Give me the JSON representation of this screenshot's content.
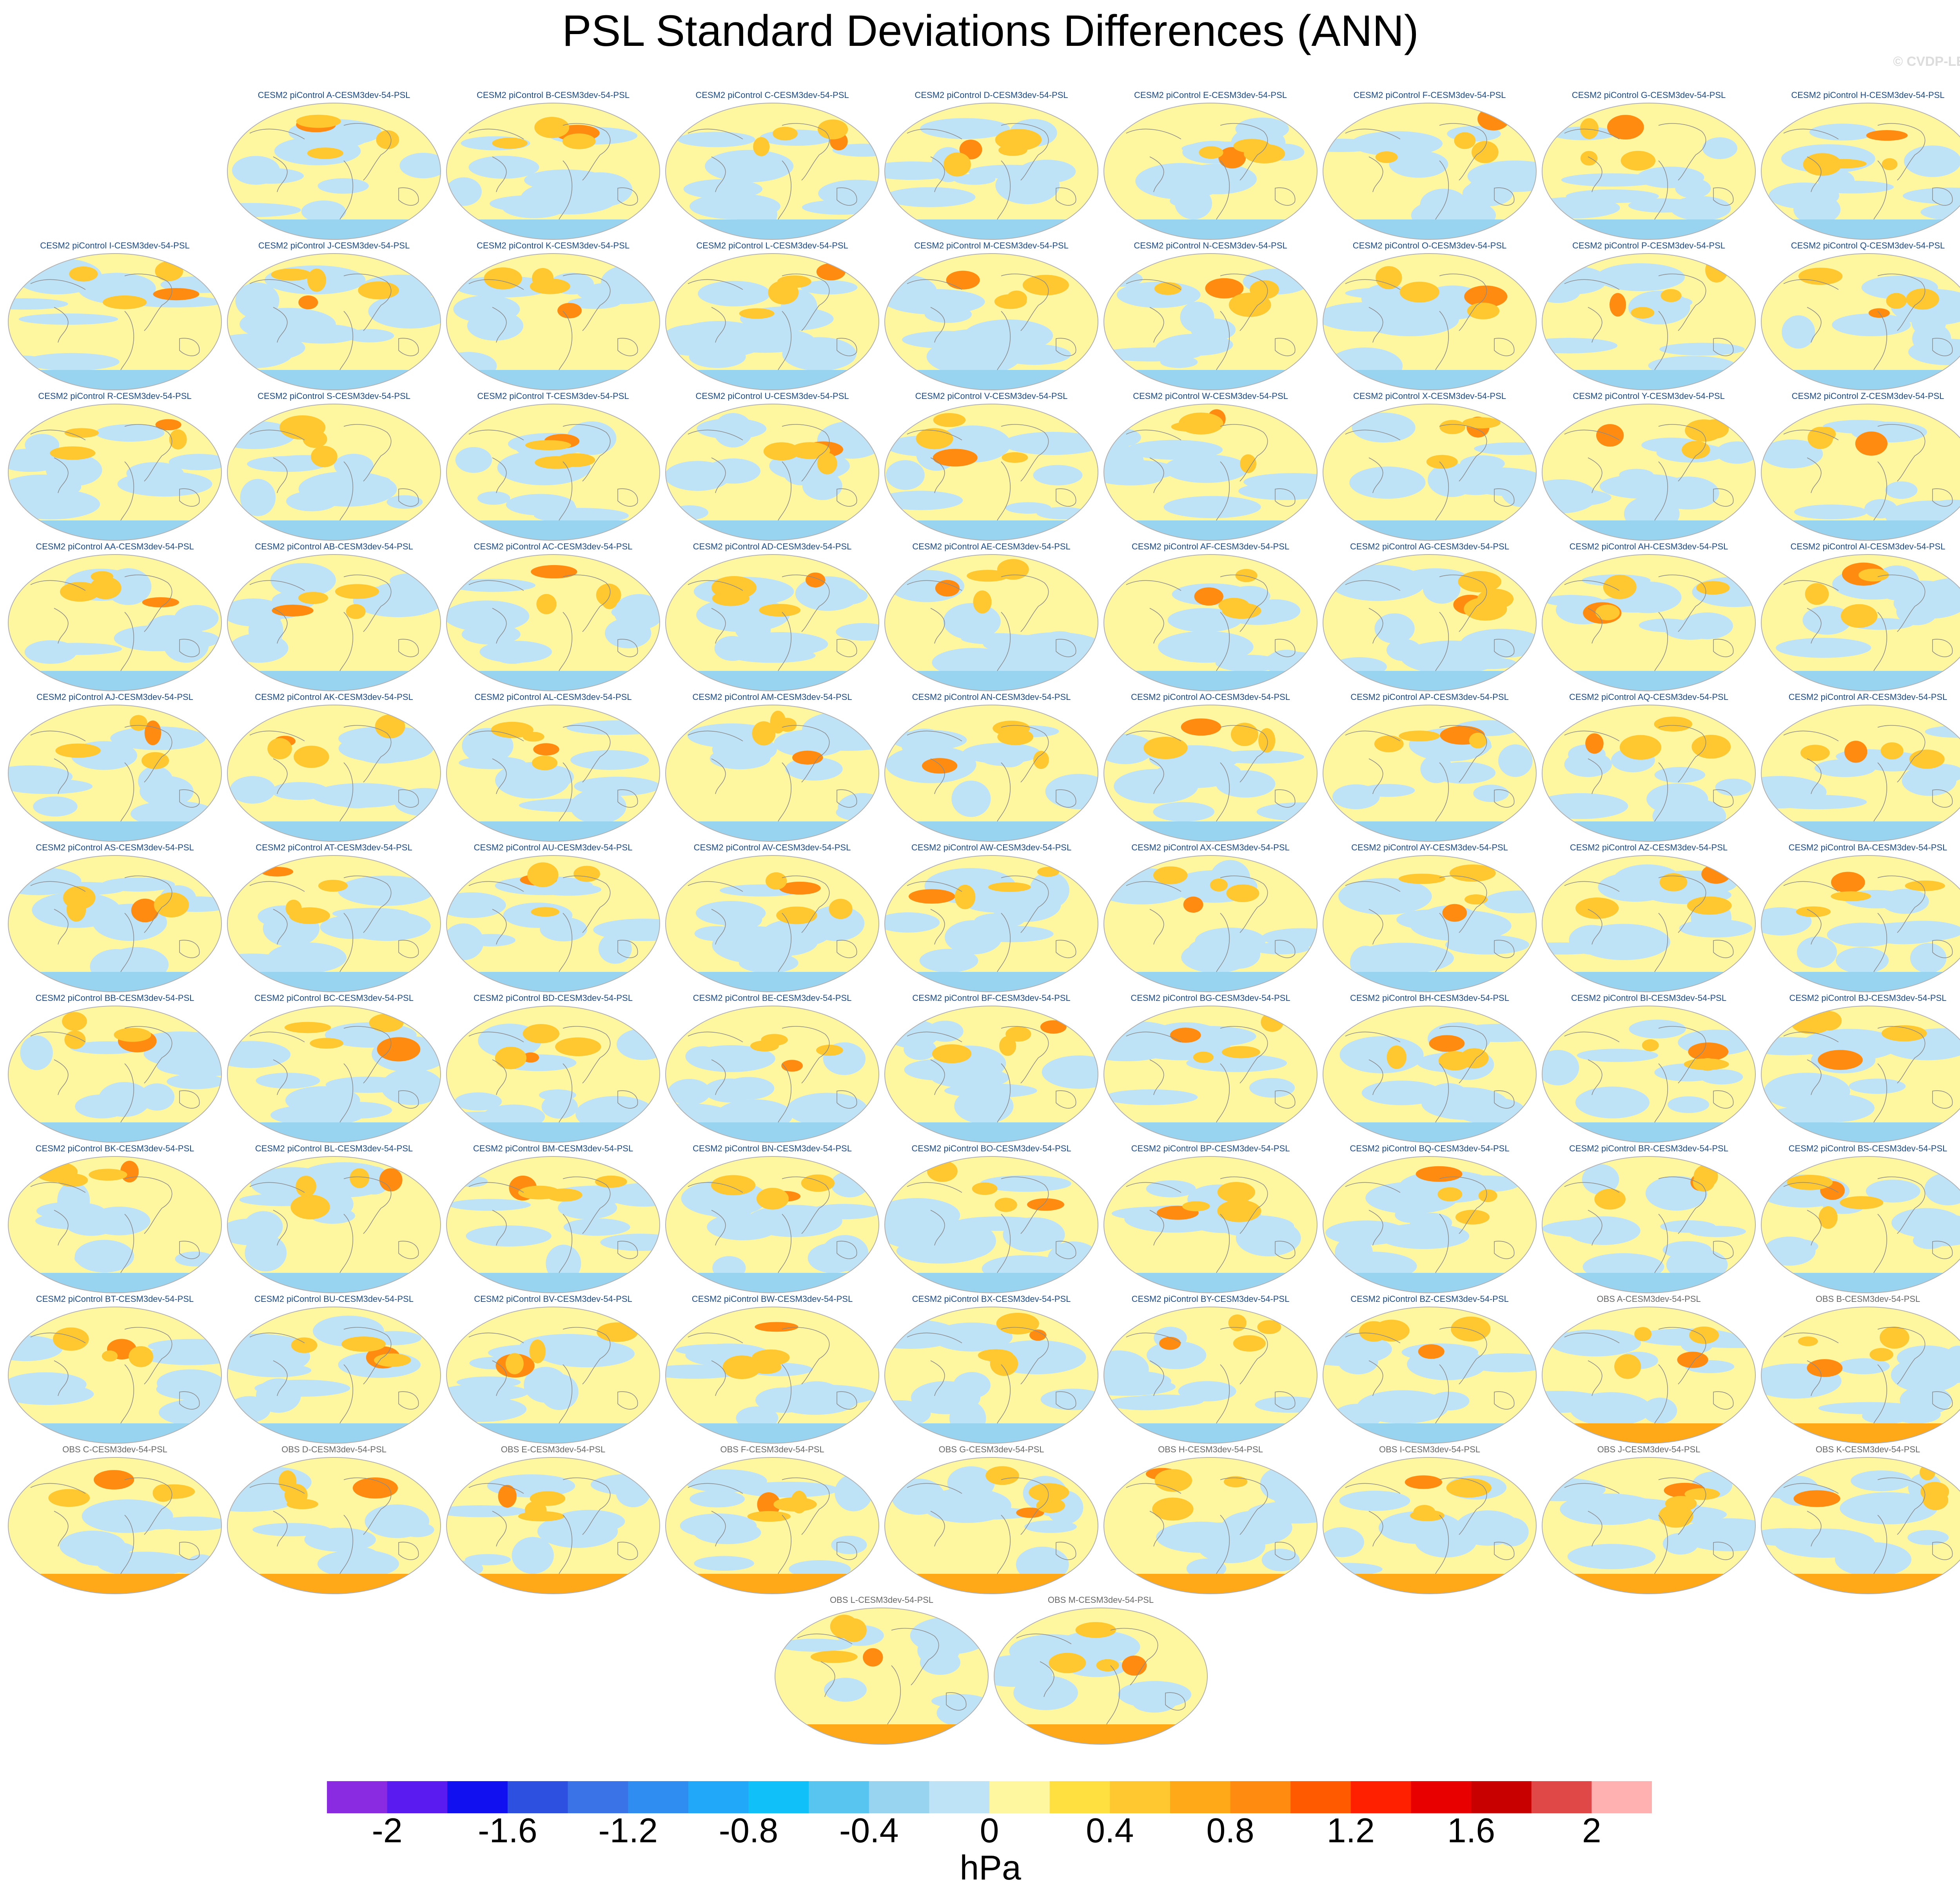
{
  "title": "PSL Standard Deviations Differences (ANN)",
  "credit": "© CVDP-LE",
  "panels": [
    "CESM2 piControl A-CESM3dev-54-PSL",
    "CESM2 piControl B-CESM3dev-54-PSL",
    "CESM2 piControl C-CESM3dev-54-PSL",
    "CESM2 piControl D-CESM3dev-54-PSL",
    "CESM2 piControl E-CESM3dev-54-PSL",
    "CESM2 piControl F-CESM3dev-54-PSL",
    "CESM2 piControl G-CESM3dev-54-PSL",
    "CESM2 piControl H-CESM3dev-54-PSL",
    "CESM2 piControl I-CESM3dev-54-PSL",
    "CESM2 piControl J-CESM3dev-54-PSL",
    "CESM2 piControl K-CESM3dev-54-PSL",
    "CESM2 piControl L-CESM3dev-54-PSL",
    "CESM2 piControl M-CESM3dev-54-PSL",
    "CESM2 piControl N-CESM3dev-54-PSL",
    "CESM2 piControl O-CESM3dev-54-PSL",
    "CESM2 piControl P-CESM3dev-54-PSL",
    "CESM2 piControl Q-CESM3dev-54-PSL",
    "CESM2 piControl R-CESM3dev-54-PSL",
    "CESM2 piControl S-CESM3dev-54-PSL",
    "CESM2 piControl T-CESM3dev-54-PSL",
    "CESM2 piControl U-CESM3dev-54-PSL",
    "CESM2 piControl V-CESM3dev-54-PSL",
    "CESM2 piControl W-CESM3dev-54-PSL",
    "CESM2 piControl X-CESM3dev-54-PSL",
    "CESM2 piControl Y-CESM3dev-54-PSL",
    "CESM2 piControl Z-CESM3dev-54-PSL",
    "CESM2 piControl AA-CESM3dev-54-PSL",
    "CESM2 piControl AB-CESM3dev-54-PSL",
    "CESM2 piControl AC-CESM3dev-54-PSL",
    "CESM2 piControl AD-CESM3dev-54-PSL",
    "CESM2 piControl AE-CESM3dev-54-PSL",
    "CESM2 piControl AF-CESM3dev-54-PSL",
    "CESM2 piControl AG-CESM3dev-54-PSL",
    "CESM2 piControl AH-CESM3dev-54-PSL",
    "CESM2 piControl AI-CESM3dev-54-PSL",
    "CESM2 piControl AJ-CESM3dev-54-PSL",
    "CESM2 piControl AK-CESM3dev-54-PSL",
    "CESM2 piControl AL-CESM3dev-54-PSL",
    "CESM2 piControl AM-CESM3dev-54-PSL",
    "CESM2 piControl AN-CESM3dev-54-PSL",
    "CESM2 piControl AO-CESM3dev-54-PSL",
    "CESM2 piControl AP-CESM3dev-54-PSL",
    "CESM2 piControl AQ-CESM3dev-54-PSL",
    "CESM2 piControl AR-CESM3dev-54-PSL",
    "CESM2 piControl AS-CESM3dev-54-PSL",
    "CESM2 piControl AT-CESM3dev-54-PSL",
    "CESM2 piControl AU-CESM3dev-54-PSL",
    "CESM2 piControl AV-CESM3dev-54-PSL",
    "CESM2 piControl AW-CESM3dev-54-PSL",
    "CESM2 piControl AX-CESM3dev-54-PSL",
    "CESM2 piControl AY-CESM3dev-54-PSL",
    "CESM2 piControl AZ-CESM3dev-54-PSL",
    "CESM2 piControl BA-CESM3dev-54-PSL",
    "CESM2 piControl BB-CESM3dev-54-PSL",
    "CESM2 piControl BC-CESM3dev-54-PSL",
    "CESM2 piControl BD-CESM3dev-54-PSL",
    "CESM2 piControl BE-CESM3dev-54-PSL",
    "CESM2 piControl BF-CESM3dev-54-PSL",
    "CESM2 piControl BG-CESM3dev-54-PSL",
    "CESM2 piControl BH-CESM3dev-54-PSL",
    "CESM2 piControl BI-CESM3dev-54-PSL",
    "CESM2 piControl BJ-CESM3dev-54-PSL",
    "CESM2 piControl BK-CESM3dev-54-PSL",
    "CESM2 piControl BL-CESM3dev-54-PSL",
    "CESM2 piControl BM-CESM3dev-54-PSL",
    "CESM2 piControl BN-CESM3dev-54-PSL",
    "CESM2 piControl BO-CESM3dev-54-PSL",
    "CESM2 piControl BP-CESM3dev-54-PSL",
    "CESM2 piControl BQ-CESM3dev-54-PSL",
    "CESM2 piControl BR-CESM3dev-54-PSL",
    "CESM2 piControl BS-CESM3dev-54-PSL",
    "CESM2 piControl BT-CESM3dev-54-PSL",
    "CESM2 piControl BU-CESM3dev-54-PSL",
    "CESM2 piControl BV-CESM3dev-54-PSL",
    "CESM2 piControl BW-CESM3dev-54-PSL",
    "CESM2 piControl BX-CESM3dev-54-PSL",
    "CESM2 piControl BY-CESM3dev-54-PSL",
    "CESM2 piControl BZ-CESM3dev-54-PSL",
    "OBS A-CESM3dev-54-PSL",
    "OBS B-CESM3dev-54-PSL",
    "OBS C-CESM3dev-54-PSL",
    "OBS D-CESM3dev-54-PSL",
    "OBS E-CESM3dev-54-PSL",
    "OBS F-CESM3dev-54-PSL",
    "OBS G-CESM3dev-54-PSL",
    "OBS H-CESM3dev-54-PSL",
    "OBS I-CESM3dev-54-PSL",
    "OBS J-CESM3dev-54-PSL",
    "OBS K-CESM3dev-54-PSL",
    "OBS L-CESM3dev-54-PSL",
    "OBS M-CESM3dev-54-PSL"
  ],
  "colorbar": {
    "units": "hPa",
    "labels": [
      "-2",
      "-1.6",
      "-1.2",
      "-0.8",
      "-0.4",
      "0",
      "0.4",
      "0.8",
      "1.2",
      "1.6",
      "2"
    ],
    "colors": [
      "#8a2be2",
      "#5a1bf0",
      "#1010f0",
      "#2e50e0",
      "#3a72e8",
      "#2f8cf0",
      "#22a8f8",
      "#10c0f8",
      "#58c4f0",
      "#98d4f0",
      "#bfe3f6",
      "#fff7a0",
      "#ffe040",
      "#ffc830",
      "#ffa818",
      "#ff8c10",
      "#ff5a00",
      "#ff2000",
      "#e80000",
      "#c80000",
      "#e04848",
      "#ffb0b0"
    ]
  }
}
